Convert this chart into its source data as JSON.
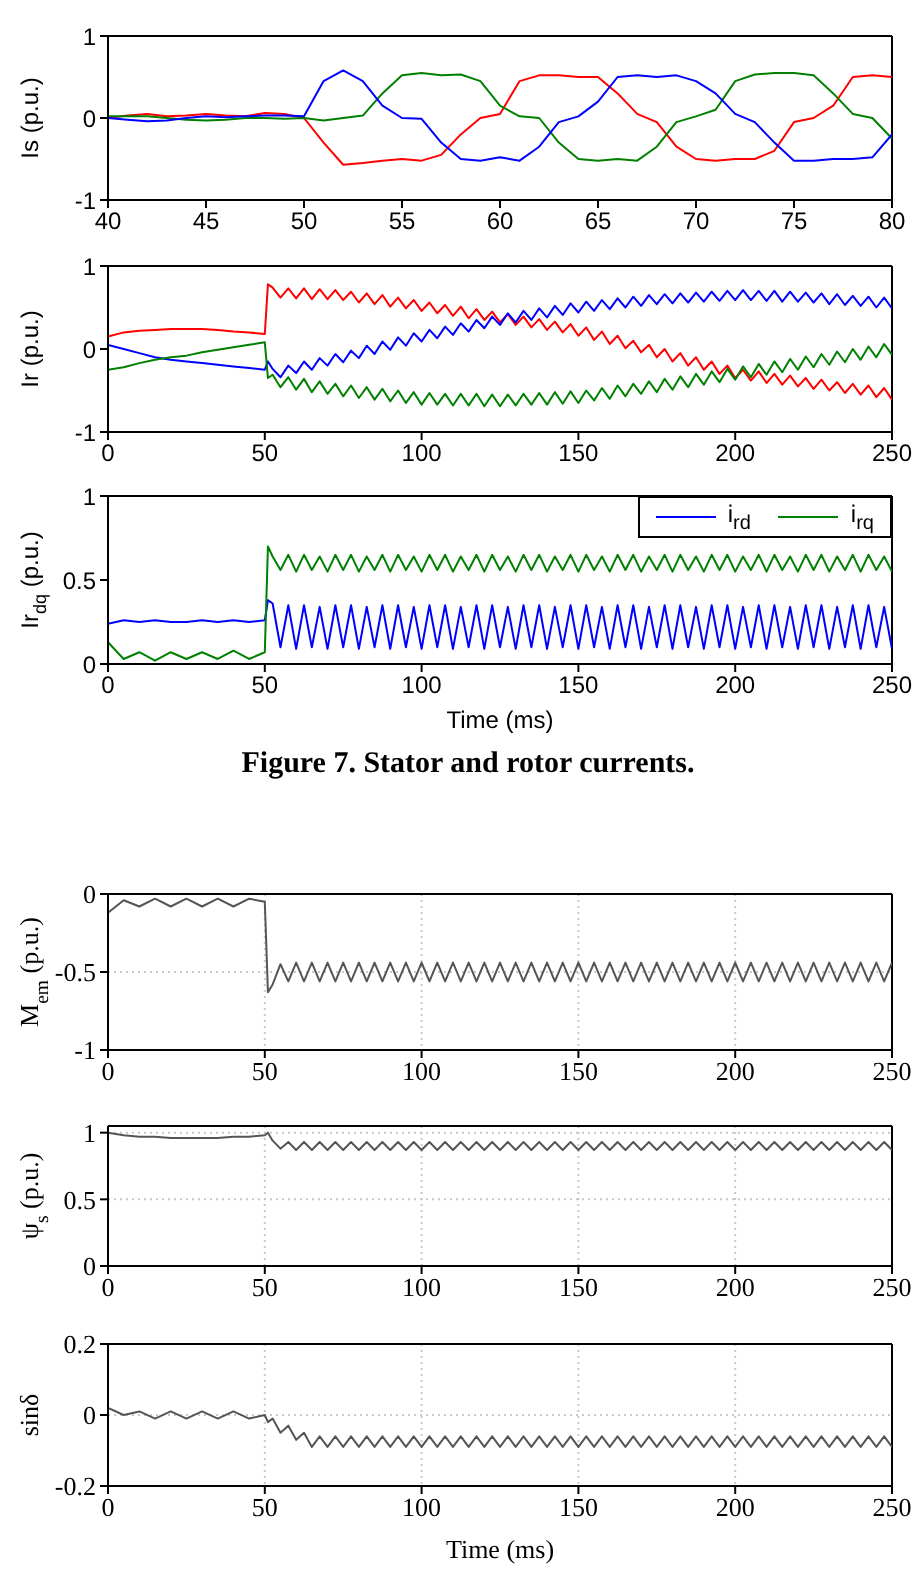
{
  "chart_data": [
    {
      "type": "line",
      "ylabel": "Is (p.u.)",
      "xlim": [
        40,
        80
      ],
      "xticks": [
        40,
        45,
        50,
        55,
        60,
        65,
        70,
        75,
        80
      ],
      "ylim": [
        -1,
        1
      ],
      "yticks": [
        -1,
        0,
        1
      ],
      "x": [
        40,
        41,
        42,
        43,
        44,
        45,
        46,
        47,
        48,
        49,
        50,
        51,
        52,
        53,
        54,
        55,
        56,
        57,
        58,
        59,
        60,
        61,
        62,
        63,
        64,
        65,
        66,
        67,
        68,
        69,
        70,
        71,
        72,
        73,
        74,
        75,
        76,
        77,
        78,
        79,
        80
      ],
      "series": [
        {
          "color": "#ff0000",
          "values": [
            0,
            0.03,
            0.05,
            0.02,
            0.03,
            0.05,
            0.03,
            0.02,
            0.06,
            0.05,
            0,
            -0.3,
            -0.57,
            -0.55,
            -0.52,
            -0.5,
            -0.52,
            -0.45,
            -0.2,
            0,
            0.05,
            0.45,
            0.52,
            0.52,
            0.5,
            0.5,
            0.3,
            0.05,
            -0.05,
            -0.35,
            -0.5,
            -0.52,
            -0.5,
            -0.5,
            -0.4,
            -0.05,
            0,
            0.15,
            0.5,
            0.52,
            0.5
          ]
        },
        {
          "color": "#008000",
          "values": [
            0.02,
            0.02,
            0.02,
            0,
            -0.02,
            -0.03,
            -0.02,
            0,
            0,
            -0.01,
            0,
            -0.03,
            0,
            0.03,
            0.3,
            0.52,
            0.55,
            0.52,
            0.53,
            0.45,
            0.15,
            0.02,
            0,
            -0.3,
            -0.5,
            -0.52,
            -0.5,
            -0.52,
            -0.35,
            -0.05,
            0.02,
            0.1,
            0.45,
            0.53,
            0.55,
            0.55,
            0.52,
            0.3,
            0.05,
            0,
            -0.25
          ]
        },
        {
          "color": "#0000ff",
          "values": [
            0,
            -0.02,
            -0.04,
            -0.03,
            0,
            0.02,
            0.01,
            0.02,
            0.03,
            0.03,
            0.02,
            0.45,
            0.58,
            0.45,
            0.15,
            0,
            -0.01,
            -0.3,
            -0.5,
            -0.52,
            -0.48,
            -0.52,
            -0.35,
            -0.05,
            0.02,
            0.2,
            0.5,
            0.52,
            0.5,
            0.52,
            0.45,
            0.3,
            0.05,
            -0.05,
            -0.3,
            -0.52,
            -0.52,
            -0.5,
            -0.5,
            -0.48,
            -0.2
          ]
        }
      ]
    },
    {
      "type": "line",
      "ylabel": "Ir (p.u.)",
      "xlim": [
        0,
        250
      ],
      "xticks": [
        0,
        50,
        100,
        150,
        200,
        250
      ],
      "ylim": [
        -1,
        1
      ],
      "yticks": [
        -1,
        0,
        1
      ],
      "x": [
        0,
        5,
        10,
        15,
        20,
        25,
        30,
        35,
        40,
        45,
        50,
        51,
        52.5,
        55,
        57.5,
        60,
        62.5,
        65,
        67.5,
        70,
        72.5,
        75,
        77.5,
        80,
        82.5,
        85,
        87.5,
        90,
        92.5,
        95,
        97.5,
        100,
        102.5,
        105,
        107.5,
        110,
        112.5,
        115,
        117.5,
        120,
        122.5,
        125,
        127.5,
        130,
        132.5,
        135,
        137.5,
        140,
        142.5,
        145,
        147.5,
        150,
        152.5,
        155,
        157.5,
        160,
        162.5,
        165,
        167.5,
        170,
        172.5,
        175,
        177.5,
        180,
        182.5,
        185,
        187.5,
        190,
        192.5,
        195,
        197.5,
        200,
        202.5,
        205,
        207.5,
        210,
        212.5,
        215,
        217.5,
        220,
        222.5,
        225,
        227.5,
        230,
        232.5,
        235,
        237.5,
        240,
        242.5,
        245,
        247.5,
        250
      ],
      "series": [
        {
          "color": "#ff0000",
          "values": [
            0.15,
            0.2,
            0.22,
            0.23,
            0.24,
            0.24,
            0.24,
            0.23,
            0.21,
            0.2,
            0.18,
            0.78,
            0.74,
            0.62,
            0.73,
            0.61,
            0.73,
            0.6,
            0.72,
            0.6,
            0.71,
            0.59,
            0.69,
            0.56,
            0.67,
            0.54,
            0.65,
            0.51,
            0.62,
            0.49,
            0.59,
            0.46,
            0.56,
            0.43,
            0.53,
            0.4,
            0.51,
            0.37,
            0.48,
            0.35,
            0.45,
            0.32,
            0.42,
            0.29,
            0.39,
            0.26,
            0.36,
            0.23,
            0.33,
            0.2,
            0.3,
            0.16,
            0.26,
            0.11,
            0.21,
            0.06,
            0.16,
            0.01,
            0.1,
            -0.04,
            0.05,
            -0.1,
            0,
            -0.15,
            -0.05,
            -0.2,
            -0.1,
            -0.25,
            -0.15,
            -0.3,
            -0.2,
            -0.35,
            -0.25,
            -0.38,
            -0.27,
            -0.41,
            -0.3,
            -0.43,
            -0.32,
            -0.45,
            -0.35,
            -0.48,
            -0.37,
            -0.5,
            -0.4,
            -0.53,
            -0.42,
            -0.55,
            -0.44,
            -0.58,
            -0.47,
            -0.61
          ]
        },
        {
          "color": "#0000ff",
          "values": [
            0.05,
            0,
            -0.05,
            -0.1,
            -0.13,
            -0.15,
            -0.17,
            -0.19,
            -0.21,
            -0.23,
            -0.25,
            -0.15,
            -0.24,
            -0.34,
            -0.2,
            -0.29,
            -0.15,
            -0.25,
            -0.11,
            -0.2,
            -0.06,
            -0.16,
            -0.02,
            -0.11,
            0.04,
            -0.06,
            0.09,
            -0.01,
            0.14,
            0.04,
            0.19,
            0.09,
            0.23,
            0.13,
            0.27,
            0.17,
            0.31,
            0.21,
            0.35,
            0.25,
            0.39,
            0.29,
            0.43,
            0.32,
            0.46,
            0.35,
            0.49,
            0.38,
            0.52,
            0.41,
            0.55,
            0.44,
            0.57,
            0.46,
            0.59,
            0.48,
            0.61,
            0.5,
            0.63,
            0.52,
            0.65,
            0.54,
            0.66,
            0.55,
            0.67,
            0.56,
            0.68,
            0.57,
            0.69,
            0.58,
            0.7,
            0.59,
            0.71,
            0.59,
            0.7,
            0.58,
            0.7,
            0.57,
            0.69,
            0.57,
            0.68,
            0.56,
            0.67,
            0.54,
            0.66,
            0.53,
            0.64,
            0.52,
            0.63,
            0.5,
            0.62,
            0.49
          ]
        },
        {
          "color": "#008000",
          "values": [
            -0.25,
            -0.22,
            -0.17,
            -0.13,
            -0.1,
            -0.08,
            -0.04,
            -0.01,
            0.02,
            0.05,
            0.08,
            -0.35,
            -0.31,
            -0.46,
            -0.34,
            -0.49,
            -0.36,
            -0.52,
            -0.39,
            -0.54,
            -0.42,
            -0.57,
            -0.44,
            -0.59,
            -0.46,
            -0.61,
            -0.48,
            -0.63,
            -0.5,
            -0.65,
            -0.52,
            -0.67,
            -0.53,
            -0.67,
            -0.54,
            -0.68,
            -0.54,
            -0.68,
            -0.54,
            -0.69,
            -0.55,
            -0.69,
            -0.55,
            -0.68,
            -0.54,
            -0.67,
            -0.53,
            -0.67,
            -0.52,
            -0.66,
            -0.51,
            -0.65,
            -0.5,
            -0.62,
            -0.47,
            -0.6,
            -0.44,
            -0.57,
            -0.42,
            -0.54,
            -0.39,
            -0.52,
            -0.36,
            -0.49,
            -0.33,
            -0.46,
            -0.3,
            -0.43,
            -0.27,
            -0.4,
            -0.24,
            -0.37,
            -0.21,
            -0.34,
            -0.18,
            -0.31,
            -0.15,
            -0.28,
            -0.12,
            -0.25,
            -0.09,
            -0.22,
            -0.06,
            -0.19,
            -0.03,
            -0.16,
            0,
            -0.13,
            0.03,
            -0.1,
            0.06,
            -0.07
          ]
        }
      ]
    },
    {
      "type": "line",
      "ylabel": "Ir$_{dq}$ (p.u.)",
      "xlabel": "Time (ms)",
      "legend": "top right",
      "annotations": [
        "Figure 7. Stator and rotor currents."
      ],
      "xlim": [
        0,
        250
      ],
      "xticks": [
        0,
        50,
        100,
        150,
        200,
        250
      ],
      "ylim": [
        0,
        1
      ],
      "yticks": [
        0,
        0.5,
        1
      ],
      "x": [
        0,
        5,
        10,
        15,
        20,
        25,
        30,
        35,
        40,
        45,
        50,
        51,
        52.5,
        55,
        57.5,
        60,
        62.5,
        65,
        67.5,
        70,
        72.5,
        75,
        77.5,
        80,
        82.5,
        85,
        87.5,
        90,
        92.5,
        95,
        97.5,
        100,
        102.5,
        105,
        107.5,
        110,
        112.5,
        115,
        117.5,
        120,
        122.5,
        125,
        127.5,
        130,
        132.5,
        135,
        137.5,
        140,
        142.5,
        145,
        147.5,
        150,
        152.5,
        155,
        157.5,
        160,
        162.5,
        165,
        167.5,
        170,
        172.5,
        175,
        177.5,
        180,
        182.5,
        185,
        187.5,
        190,
        192.5,
        195,
        197.5,
        200,
        202.5,
        205,
        207.5,
        210,
        212.5,
        215,
        217.5,
        220,
        222.5,
        225,
        227.5,
        230,
        232.5,
        235,
        237.5,
        240,
        242.5,
        245,
        247.5,
        250
      ],
      "series": [
        {
          "name": "i$_{rd}$",
          "color": "#0000ff",
          "values": [
            0.24,
            0.26,
            0.25,
            0.26,
            0.25,
            0.25,
            0.26,
            0.25,
            0.26,
            0.25,
            0.26,
            0.38,
            0.36,
            0.1,
            0.35,
            0.09,
            0.35,
            0.1,
            0.34,
            0.09,
            0.35,
            0.1,
            0.35,
            0.09,
            0.34,
            0.1,
            0.35,
            0.09,
            0.35,
            0.1,
            0.34,
            0.09,
            0.35,
            0.1,
            0.35,
            0.09,
            0.34,
            0.1,
            0.35,
            0.09,
            0.35,
            0.1,
            0.34,
            0.09,
            0.35,
            0.1,
            0.35,
            0.09,
            0.34,
            0.1,
            0.35,
            0.09,
            0.35,
            0.1,
            0.34,
            0.09,
            0.35,
            0.1,
            0.35,
            0.09,
            0.34,
            0.1,
            0.35,
            0.09,
            0.35,
            0.1,
            0.34,
            0.09,
            0.35,
            0.1,
            0.35,
            0.09,
            0.34,
            0.1,
            0.35,
            0.09,
            0.35,
            0.1,
            0.34,
            0.09,
            0.35,
            0.1,
            0.35,
            0.09,
            0.34,
            0.1,
            0.35,
            0.09,
            0.35,
            0.1,
            0.34,
            0.09
          ]
        },
        {
          "name": "i$_{rq}$",
          "color": "#008000",
          "values": [
            0.13,
            0.03,
            0.07,
            0.02,
            0.07,
            0.03,
            0.07,
            0.03,
            0.08,
            0.03,
            0.07,
            0.7,
            0.64,
            0.56,
            0.65,
            0.55,
            0.65,
            0.56,
            0.64,
            0.55,
            0.65,
            0.56,
            0.65,
            0.55,
            0.64,
            0.56,
            0.65,
            0.55,
            0.65,
            0.56,
            0.64,
            0.55,
            0.65,
            0.56,
            0.65,
            0.55,
            0.64,
            0.56,
            0.65,
            0.55,
            0.65,
            0.56,
            0.64,
            0.55,
            0.65,
            0.56,
            0.65,
            0.55,
            0.64,
            0.56,
            0.65,
            0.55,
            0.65,
            0.56,
            0.64,
            0.55,
            0.65,
            0.56,
            0.65,
            0.55,
            0.64,
            0.56,
            0.65,
            0.55,
            0.65,
            0.56,
            0.64,
            0.55,
            0.65,
            0.56,
            0.65,
            0.55,
            0.64,
            0.56,
            0.65,
            0.55,
            0.65,
            0.56,
            0.64,
            0.55,
            0.65,
            0.56,
            0.65,
            0.55,
            0.64,
            0.56,
            0.65,
            0.55,
            0.65,
            0.56,
            0.64,
            0.55
          ]
        }
      ]
    },
    {
      "type": "line",
      "ylabel": "M$_{em}$ (p.u.)",
      "grid": true,
      "xlim": [
        0,
        250
      ],
      "xticks": [
        0,
        50,
        100,
        150,
        200,
        250
      ],
      "ylim": [
        -1,
        0
      ],
      "yticks": [
        -1,
        -0.5,
        0
      ],
      "x": [
        0,
        5,
        10,
        15,
        20,
        25,
        30,
        35,
        40,
        45,
        50,
        51,
        52.5,
        55,
        57.5,
        60,
        62.5,
        65,
        67.5,
        70,
        72.5,
        75,
        77.5,
        80,
        82.5,
        85,
        87.5,
        90,
        92.5,
        95,
        97.5,
        100,
        102.5,
        105,
        107.5,
        110,
        112.5,
        115,
        117.5,
        120,
        122.5,
        125,
        127.5,
        130,
        132.5,
        135,
        137.5,
        140,
        142.5,
        145,
        147.5,
        150,
        152.5,
        155,
        157.5,
        160,
        162.5,
        165,
        167.5,
        170,
        172.5,
        175,
        177.5,
        180,
        182.5,
        185,
        187.5,
        190,
        192.5,
        195,
        197.5,
        200,
        202.5,
        205,
        207.5,
        210,
        212.5,
        215,
        217.5,
        220,
        222.5,
        225,
        227.5,
        230,
        232.5,
        235,
        237.5,
        240,
        242.5,
        245,
        247.5,
        250
      ],
      "series": [
        {
          "color": "#555555",
          "values": [
            -0.12,
            -0.04,
            -0.08,
            -0.03,
            -0.08,
            -0.03,
            -0.08,
            -0.03,
            -0.08,
            -0.03,
            -0.05,
            -0.63,
            -0.58,
            -0.45,
            -0.56,
            -0.44,
            -0.56,
            -0.44,
            -0.56,
            -0.44,
            -0.56,
            -0.44,
            -0.56,
            -0.44,
            -0.56,
            -0.44,
            -0.56,
            -0.44,
            -0.56,
            -0.44,
            -0.56,
            -0.44,
            -0.56,
            -0.44,
            -0.56,
            -0.44,
            -0.56,
            -0.44,
            -0.56,
            -0.44,
            -0.56,
            -0.44,
            -0.56,
            -0.44,
            -0.56,
            -0.44,
            -0.56,
            -0.44,
            -0.56,
            -0.44,
            -0.56,
            -0.44,
            -0.56,
            -0.44,
            -0.56,
            -0.44,
            -0.56,
            -0.44,
            -0.56,
            -0.44,
            -0.56,
            -0.44,
            -0.56,
            -0.44,
            -0.56,
            -0.44,
            -0.56,
            -0.44,
            -0.56,
            -0.44,
            -0.56,
            -0.44,
            -0.56,
            -0.44,
            -0.56,
            -0.44,
            -0.56,
            -0.44,
            -0.56,
            -0.44,
            -0.56,
            -0.44,
            -0.56,
            -0.44,
            -0.56,
            -0.44,
            -0.56,
            -0.44,
            -0.56,
            -0.44,
            -0.56,
            -0.44
          ]
        }
      ]
    },
    {
      "type": "line",
      "ylabel": "ψ$_{s}$ (p.u.)",
      "grid": true,
      "xlim": [
        0,
        250
      ],
      "xticks": [
        0,
        50,
        100,
        150,
        200,
        250
      ],
      "ylim": [
        0,
        1.05
      ],
      "yticks": [
        0,
        0.5,
        1
      ],
      "x": [
        0,
        5,
        10,
        15,
        20,
        25,
        30,
        35,
        40,
        45,
        50,
        51,
        52.5,
        55,
        57.5,
        60,
        62.5,
        65,
        67.5,
        70,
        72.5,
        75,
        77.5,
        80,
        82.5,
        85,
        87.5,
        90,
        92.5,
        95,
        97.5,
        100,
        102.5,
        105,
        107.5,
        110,
        112.5,
        115,
        117.5,
        120,
        122.5,
        125,
        127.5,
        130,
        132.5,
        135,
        137.5,
        140,
        142.5,
        145,
        147.5,
        150,
        152.5,
        155,
        157.5,
        160,
        162.5,
        165,
        167.5,
        170,
        172.5,
        175,
        177.5,
        180,
        182.5,
        185,
        187.5,
        190,
        192.5,
        195,
        197.5,
        200,
        202.5,
        205,
        207.5,
        210,
        212.5,
        215,
        217.5,
        220,
        222.5,
        225,
        227.5,
        230,
        232.5,
        235,
        237.5,
        240,
        242.5,
        245,
        247.5,
        250
      ],
      "series": [
        {
          "color": "#555555",
          "values": [
            1,
            0.98,
            0.97,
            0.97,
            0.96,
            0.96,
            0.96,
            0.96,
            0.97,
            0.97,
            0.98,
            1,
            0.94,
            0.88,
            0.93,
            0.87,
            0.93,
            0.87,
            0.93,
            0.87,
            0.93,
            0.87,
            0.93,
            0.87,
            0.93,
            0.87,
            0.93,
            0.87,
            0.93,
            0.87,
            0.93,
            0.87,
            0.93,
            0.87,
            0.93,
            0.87,
            0.93,
            0.87,
            0.93,
            0.87,
            0.93,
            0.87,
            0.93,
            0.87,
            0.93,
            0.87,
            0.93,
            0.87,
            0.93,
            0.87,
            0.93,
            0.87,
            0.93,
            0.87,
            0.93,
            0.87,
            0.93,
            0.87,
            0.93,
            0.87,
            0.93,
            0.87,
            0.93,
            0.87,
            0.93,
            0.87,
            0.93,
            0.87,
            0.93,
            0.87,
            0.93,
            0.87,
            0.93,
            0.87,
            0.93,
            0.87,
            0.93,
            0.87,
            0.93,
            0.87,
            0.93,
            0.87,
            0.93,
            0.87,
            0.93,
            0.87,
            0.93,
            0.87,
            0.93,
            0.87,
            0.93,
            0.87
          ]
        }
      ]
    },
    {
      "type": "line",
      "ylabel": "sinδ",
      "xlabel": "Time (ms)",
      "grid": true,
      "xlim": [
        0,
        250
      ],
      "xticks": [
        0,
        50,
        100,
        150,
        200,
        250
      ],
      "ylim": [
        -0.2,
        0.2
      ],
      "yticks": [
        -0.2,
        0,
        0.2
      ],
      "x": [
        0,
        5,
        10,
        15,
        20,
        25,
        30,
        35,
        40,
        45,
        50,
        51,
        52.5,
        55,
        57.5,
        60,
        62.5,
        65,
        67.5,
        70,
        72.5,
        75,
        77.5,
        80,
        82.5,
        85,
        87.5,
        90,
        92.5,
        95,
        97.5,
        100,
        102.5,
        105,
        107.5,
        110,
        112.5,
        115,
        117.5,
        120,
        122.5,
        125,
        127.5,
        130,
        132.5,
        135,
        137.5,
        140,
        142.5,
        145,
        147.5,
        150,
        152.5,
        155,
        157.5,
        160,
        162.5,
        165,
        167.5,
        170,
        172.5,
        175,
        177.5,
        180,
        182.5,
        185,
        187.5,
        190,
        192.5,
        195,
        197.5,
        200,
        202.5,
        205,
        207.5,
        210,
        212.5,
        215,
        217.5,
        220,
        222.5,
        225,
        227.5,
        230,
        232.5,
        235,
        237.5,
        240,
        242.5,
        245,
        247.5,
        250
      ],
      "series": [
        {
          "color": "#555555",
          "values": [
            0.02,
            0,
            0.01,
            -0.01,
            0.01,
            -0.01,
            0.01,
            -0.01,
            0.01,
            -0.01,
            0,
            -0.02,
            -0.01,
            -0.05,
            -0.03,
            -0.07,
            -0.05,
            -0.09,
            -0.06,
            -0.09,
            -0.06,
            -0.09,
            -0.06,
            -0.09,
            -0.06,
            -0.09,
            -0.06,
            -0.09,
            -0.06,
            -0.09,
            -0.06,
            -0.09,
            -0.06,
            -0.09,
            -0.06,
            -0.09,
            -0.06,
            -0.09,
            -0.06,
            -0.09,
            -0.06,
            -0.09,
            -0.06,
            -0.09,
            -0.06,
            -0.09,
            -0.06,
            -0.09,
            -0.06,
            -0.09,
            -0.06,
            -0.09,
            -0.06,
            -0.09,
            -0.06,
            -0.09,
            -0.06,
            -0.09,
            -0.06,
            -0.09,
            -0.06,
            -0.09,
            -0.06,
            -0.09,
            -0.06,
            -0.09,
            -0.06,
            -0.09,
            -0.06,
            -0.09,
            -0.06,
            -0.09,
            -0.06,
            -0.09,
            -0.06,
            -0.09,
            -0.06,
            -0.09,
            -0.06,
            -0.09,
            -0.06,
            -0.09,
            -0.06,
            -0.09,
            -0.06,
            -0.09,
            -0.06,
            -0.09,
            -0.06,
            -0.09,
            -0.06,
            -0.09
          ]
        }
      ]
    }
  ]
}
